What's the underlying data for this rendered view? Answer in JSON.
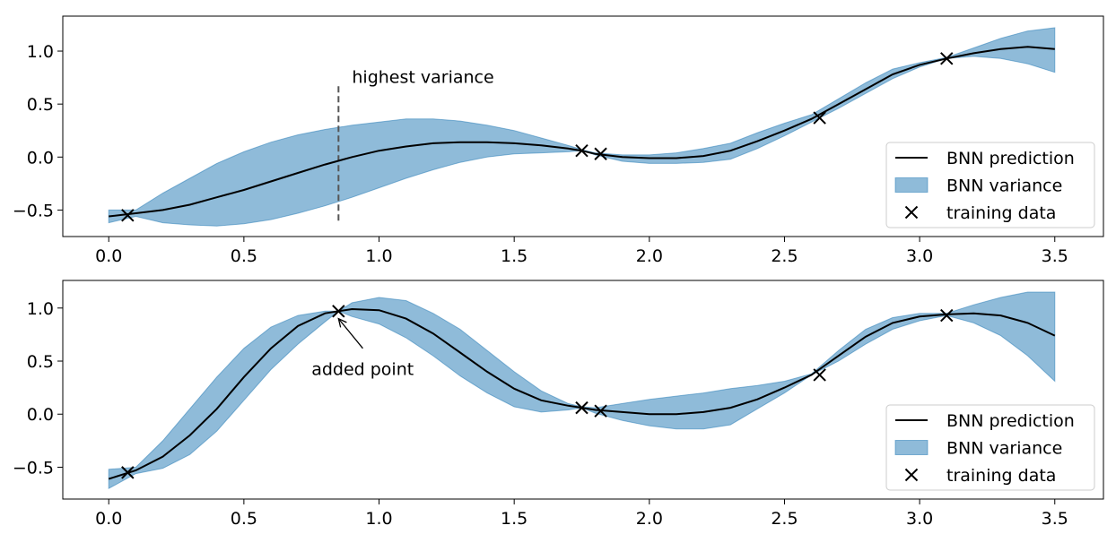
{
  "colors": {
    "band": "#1f77b4",
    "line": "#000000",
    "marker": "#000000",
    "vline": "#555555"
  },
  "chart_data": [
    {
      "type": "line",
      "title": "",
      "xlabel": "",
      "ylabel": "",
      "xlim": [
        -0.17,
        3.68
      ],
      "ylim": [
        -0.75,
        1.33
      ],
      "xticks": [
        0.0,
        0.5,
        1.0,
        1.5,
        2.0,
        2.5,
        3.0,
        3.5
      ],
      "xtick_labels": [
        "0.0",
        "0.5",
        "1.0",
        "1.5",
        "2.0",
        "2.5",
        "3.0",
        "3.5"
      ],
      "yticks": [
        -0.5,
        0.0,
        0.5,
        1.0
      ],
      "ytick_labels": [
        "−0.5",
        "0.0",
        "0.5",
        "1.0"
      ],
      "grid": false,
      "legend_position": "lower-right",
      "series": [
        {
          "name": "BNN prediction",
          "kind": "line",
          "x": [
            0.0,
            0.1,
            0.2,
            0.3,
            0.4,
            0.5,
            0.6,
            0.7,
            0.8,
            0.9,
            1.0,
            1.1,
            1.2,
            1.3,
            1.4,
            1.5,
            1.6,
            1.7,
            1.75,
            1.8,
            1.9,
            2.0,
            2.1,
            2.2,
            2.3,
            2.4,
            2.5,
            2.6,
            2.7,
            2.8,
            2.9,
            3.0,
            3.1,
            3.2,
            3.3,
            3.4,
            3.5
          ],
          "y": [
            -0.56,
            -0.53,
            -0.5,
            -0.45,
            -0.38,
            -0.31,
            -0.23,
            -0.15,
            -0.07,
            0.0,
            0.06,
            0.1,
            0.13,
            0.14,
            0.14,
            0.13,
            0.11,
            0.08,
            0.06,
            0.03,
            0.0,
            -0.01,
            -0.01,
            0.01,
            0.06,
            0.15,
            0.25,
            0.36,
            0.5,
            0.64,
            0.78,
            0.87,
            0.93,
            0.98,
            1.02,
            1.04,
            1.02
          ]
        },
        {
          "name": "BNN variance",
          "kind": "band",
          "x": [
            0.0,
            0.1,
            0.2,
            0.3,
            0.4,
            0.5,
            0.6,
            0.7,
            0.8,
            0.9,
            1.0,
            1.1,
            1.2,
            1.3,
            1.4,
            1.5,
            1.6,
            1.7,
            1.75,
            1.8,
            1.9,
            2.0,
            2.1,
            2.2,
            2.3,
            2.4,
            2.5,
            2.6,
            2.7,
            2.8,
            2.9,
            3.0,
            3.1,
            3.2,
            3.3,
            3.4,
            3.5
          ],
          "lower": [
            -0.62,
            -0.56,
            -0.62,
            -0.64,
            -0.65,
            -0.63,
            -0.59,
            -0.53,
            -0.46,
            -0.38,
            -0.29,
            -0.2,
            -0.12,
            -0.05,
            0.0,
            0.03,
            0.04,
            0.05,
            0.06,
            0.02,
            -0.04,
            -0.06,
            -0.06,
            -0.05,
            -0.02,
            0.08,
            0.2,
            0.33,
            0.46,
            0.6,
            0.74,
            0.85,
            0.93,
            0.95,
            0.93,
            0.88,
            0.8
          ],
          "upper": [
            -0.5,
            -0.5,
            -0.34,
            -0.2,
            -0.06,
            0.05,
            0.14,
            0.21,
            0.26,
            0.3,
            0.33,
            0.36,
            0.36,
            0.34,
            0.3,
            0.25,
            0.18,
            0.11,
            0.07,
            0.04,
            0.02,
            0.02,
            0.04,
            0.08,
            0.13,
            0.23,
            0.32,
            0.4,
            0.55,
            0.7,
            0.83,
            0.89,
            0.94,
            1.03,
            1.12,
            1.19,
            1.22
          ]
        },
        {
          "name": "training data",
          "kind": "scatter",
          "x": [
            0.07,
            1.75,
            1.82,
            2.63,
            3.1
          ],
          "y": [
            -0.55,
            0.06,
            0.03,
            0.37,
            0.93
          ]
        }
      ],
      "annotations": [
        {
          "text": "highest variance",
          "x": 0.9,
          "y": 0.7
        }
      ],
      "vlines": [
        {
          "x": 0.85,
          "ymin": -0.6,
          "ymax": 0.68,
          "style": "dashed"
        }
      ]
    },
    {
      "type": "line",
      "title": "",
      "xlabel": "",
      "ylabel": "",
      "xlim": [
        -0.17,
        3.68
      ],
      "ylim": [
        -0.8,
        1.26
      ],
      "xticks": [
        0.0,
        0.5,
        1.0,
        1.5,
        2.0,
        2.5,
        3.0,
        3.5
      ],
      "xtick_labels": [
        "0.0",
        "0.5",
        "1.0",
        "1.5",
        "2.0",
        "2.5",
        "3.0",
        "3.5"
      ],
      "yticks": [
        -0.5,
        0.0,
        0.5,
        1.0
      ],
      "ytick_labels": [
        "−0.5",
        "0.0",
        "0.5",
        "1.0"
      ],
      "grid": false,
      "legend_position": "lower-right",
      "series": [
        {
          "name": "BNN prediction",
          "kind": "line",
          "x": [
            0.0,
            0.1,
            0.2,
            0.3,
            0.4,
            0.5,
            0.6,
            0.7,
            0.8,
            0.85,
            0.9,
            1.0,
            1.1,
            1.2,
            1.3,
            1.4,
            1.5,
            1.6,
            1.7,
            1.75,
            1.8,
            1.9,
            2.0,
            2.1,
            2.2,
            2.3,
            2.4,
            2.5,
            2.6,
            2.7,
            2.8,
            2.9,
            3.0,
            3.1,
            3.2,
            3.3,
            3.4,
            3.5
          ],
          "y": [
            -0.61,
            -0.53,
            -0.4,
            -0.2,
            0.05,
            0.35,
            0.62,
            0.83,
            0.95,
            0.97,
            0.99,
            0.98,
            0.9,
            0.76,
            0.58,
            0.4,
            0.24,
            0.13,
            0.08,
            0.06,
            0.04,
            0.02,
            0.0,
            0.0,
            0.02,
            0.06,
            0.14,
            0.25,
            0.37,
            0.55,
            0.73,
            0.86,
            0.92,
            0.94,
            0.95,
            0.93,
            0.86,
            0.74
          ]
        },
        {
          "name": "BNN variance",
          "kind": "band",
          "x": [
            0.0,
            0.1,
            0.2,
            0.3,
            0.4,
            0.5,
            0.6,
            0.7,
            0.8,
            0.85,
            0.9,
            1.0,
            1.1,
            1.2,
            1.3,
            1.4,
            1.5,
            1.6,
            1.7,
            1.75,
            1.8,
            1.9,
            2.0,
            2.1,
            2.2,
            2.3,
            2.4,
            2.5,
            2.6,
            2.7,
            2.8,
            2.9,
            3.0,
            3.1,
            3.2,
            3.3,
            3.4,
            3.5
          ],
          "lower": [
            -0.7,
            -0.56,
            -0.51,
            -0.38,
            -0.16,
            0.13,
            0.42,
            0.66,
            0.87,
            0.97,
            0.92,
            0.85,
            0.72,
            0.55,
            0.36,
            0.2,
            0.07,
            0.02,
            0.04,
            0.06,
            0.01,
            -0.06,
            -0.11,
            -0.14,
            -0.14,
            -0.1,
            0.05,
            0.2,
            0.37,
            0.5,
            0.66,
            0.8,
            0.88,
            0.93,
            0.86,
            0.74,
            0.55,
            0.31
          ],
          "upper": [
            -0.52,
            -0.5,
            -0.25,
            0.05,
            0.35,
            0.62,
            0.82,
            0.93,
            0.97,
            0.97,
            1.05,
            1.1,
            1.07,
            0.95,
            0.8,
            0.6,
            0.4,
            0.22,
            0.1,
            0.07,
            0.06,
            0.1,
            0.14,
            0.17,
            0.2,
            0.24,
            0.27,
            0.31,
            0.38,
            0.6,
            0.8,
            0.91,
            0.95,
            0.95,
            1.03,
            1.1,
            1.15,
            1.15
          ]
        },
        {
          "name": "training data",
          "kind": "scatter",
          "x": [
            0.07,
            0.85,
            1.75,
            1.82,
            2.63,
            3.1
          ],
          "y": [
            -0.55,
            0.97,
            0.06,
            0.03,
            0.37,
            0.93
          ]
        }
      ],
      "annotations": [
        {
          "text": "added point",
          "x": 0.75,
          "y": 0.37,
          "arrow_to": [
            0.85,
            0.9
          ]
        }
      ],
      "vlines": []
    }
  ]
}
